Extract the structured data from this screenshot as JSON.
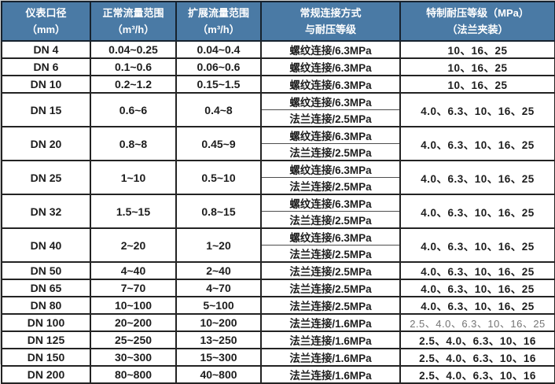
{
  "colors": {
    "header_bg": "#4a7aa5",
    "header_text": "#ffffff",
    "grid_border": "#232323",
    "body_text": "#1d1d1d",
    "muted_text": "#747474"
  },
  "table": {
    "header": {
      "columns": [
        {
          "line1": "仪表口径",
          "line2": "（mm）"
        },
        {
          "line1": "正常流量范围",
          "line2": "（m³/h）"
        },
        {
          "line1": "扩展流量范围",
          "line2": "（m³/h）"
        },
        {
          "line1": "常规连接方式",
          "line2": "与耐压等级"
        },
        {
          "line1": "特制耐压等级（MPa）",
          "line2": "（法兰夹装）"
        }
      ]
    },
    "rows": [
      {
        "diameter": "DN 4",
        "normal_range": "0.04~0.25",
        "extended_range": "0.04~0.4",
        "connections": [
          "螺纹连接/6.3MPa"
        ],
        "special_ratings": "10、16、25",
        "muted": false
      },
      {
        "diameter": "DN 6",
        "normal_range": "0.1~0.6",
        "extended_range": "0.06~0.6",
        "connections": [
          "螺纹连接/6.3MPa"
        ],
        "special_ratings": "10、16、25",
        "muted": false
      },
      {
        "diameter": "DN 10",
        "normal_range": "0.2~1.2",
        "extended_range": "0.15~1.5",
        "connections": [
          "螺纹连接/6.3MPa"
        ],
        "special_ratings": "10、16、25",
        "muted": false
      },
      {
        "diameter": "DN 15",
        "normal_range": "0.6~6",
        "extended_range": "0.4~8",
        "connections": [
          "螺纹连接/6.3MPa",
          "法兰连接/2.5MPa"
        ],
        "special_ratings": "4.0、6.3、10、16、25",
        "muted": false
      },
      {
        "diameter": "DN 20",
        "normal_range": "0.8~8",
        "extended_range": "0.45~9",
        "connections": [
          "螺纹连接/6.3MPa",
          "法兰连接/2.5MPa"
        ],
        "special_ratings": "4.0、6.3、10、16、25",
        "muted": false
      },
      {
        "diameter": "DN 25",
        "normal_range": "1~10",
        "extended_range": "0.5~10",
        "connections": [
          "螺纹连接/6.3MPa",
          "法兰连接/2.5MPa"
        ],
        "special_ratings": "4.0、6.3、10、16、25",
        "muted": false
      },
      {
        "diameter": "DN 32",
        "normal_range": "1.5~15",
        "extended_range": "0.8~15",
        "connections": [
          "螺纹连接/6.3MPa",
          "法兰连接/2.5MPa"
        ],
        "special_ratings": "4.0、6.3、10、16、25",
        "muted": false
      },
      {
        "diameter": "DN 40",
        "normal_range": "2~20",
        "extended_range": "1~20",
        "connections": [
          "螺纹连接/6.3MPa",
          "法兰连接/2.5MPa"
        ],
        "special_ratings": "4.0、6.3、10、16、25",
        "muted": false
      },
      {
        "diameter": "DN 50",
        "normal_range": "4~40",
        "extended_range": "2~40",
        "connections": [
          "法兰连接/2.5MPa"
        ],
        "special_ratings": "4.0、6.3、10、16、25",
        "muted": false
      },
      {
        "diameter": "DN 65",
        "normal_range": "7~70",
        "extended_range": "4~70",
        "connections": [
          "法兰连接/2.5MPa"
        ],
        "special_ratings": "4.0、6.3、10、16、25",
        "muted": false
      },
      {
        "diameter": "DN 80",
        "normal_range": "10~100",
        "extended_range": "5~100",
        "connections": [
          "法兰连接/2.5MPa"
        ],
        "special_ratings": "4.0、6.3、10、16、25",
        "muted": false
      },
      {
        "diameter": "DN 100",
        "normal_range": "20~200",
        "extended_range": "10~200",
        "connections": [
          "法兰连接/1.6MPa"
        ],
        "special_ratings": "2.5、4.0、6.3、10、16、25",
        "muted": true
      },
      {
        "diameter": "DN 125",
        "normal_range": "25~250",
        "extended_range": "13~250",
        "connections": [
          "法兰连接/1.6MPa"
        ],
        "special_ratings": "2.5、4.0、6.3、10、16",
        "muted": false
      },
      {
        "diameter": "DN 150",
        "normal_range": "30~300",
        "extended_range": "15~300",
        "connections": [
          "法兰连接/1.6MPa"
        ],
        "special_ratings": "2.5、4.0、6.3、10、16",
        "muted": false
      },
      {
        "diameter": "DN 200",
        "normal_range": "80~800",
        "extended_range": "40~800",
        "connections": [
          "法兰连接/1.6MPa"
        ],
        "special_ratings": "2.5、4.0、6.3、10、16",
        "muted": false
      }
    ]
  }
}
